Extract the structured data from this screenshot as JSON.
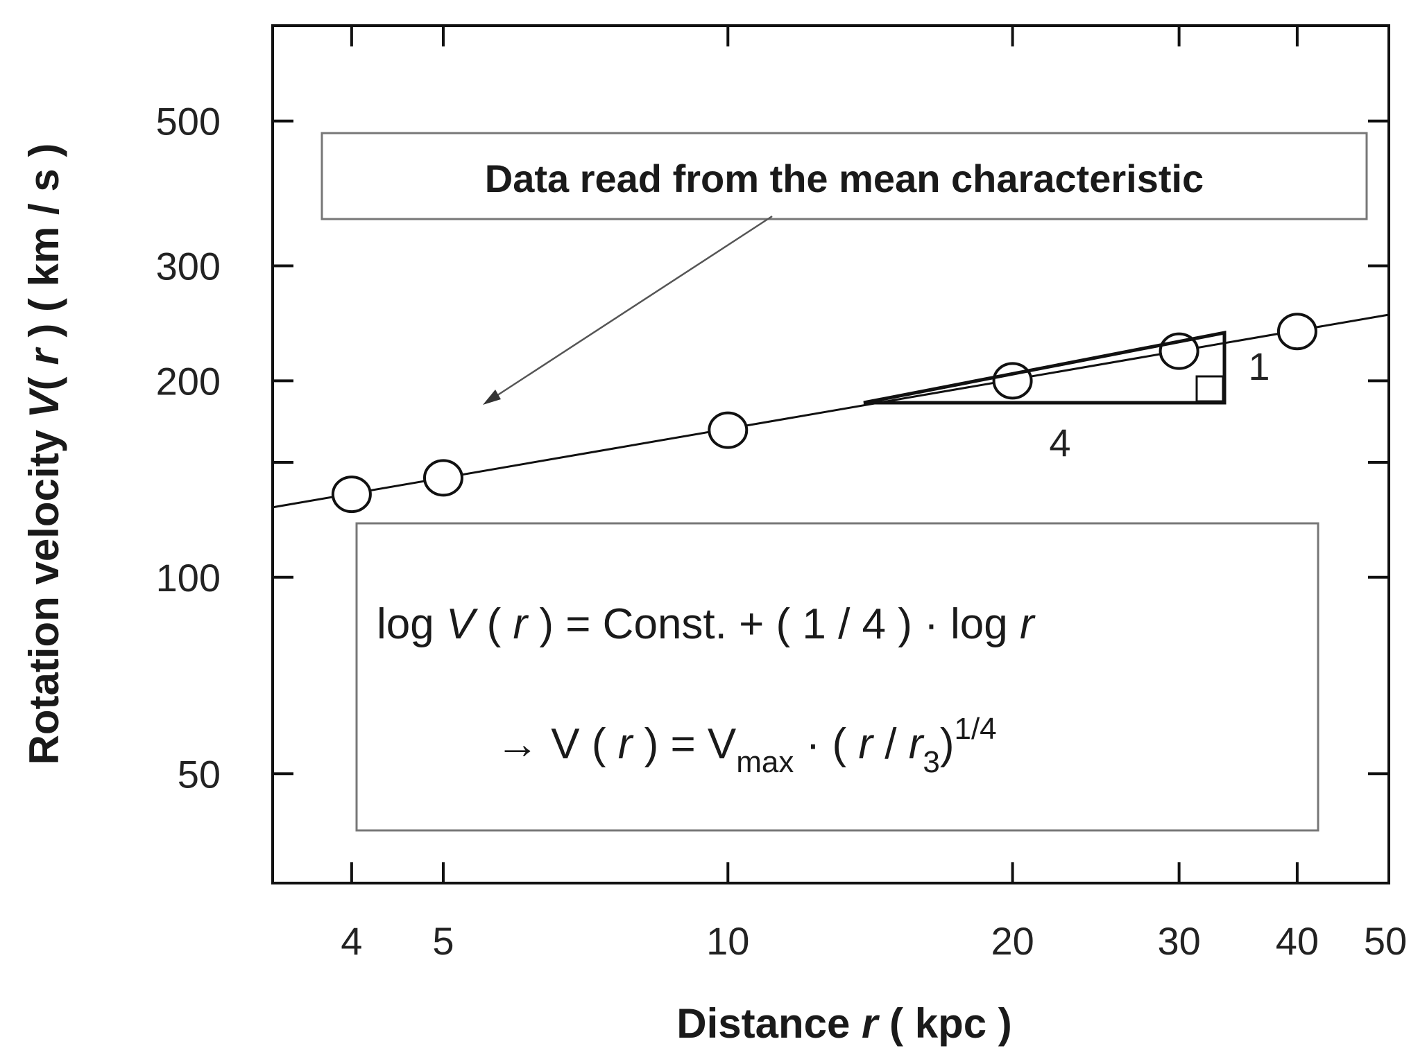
{
  "chart_data": {
    "type": "scatter",
    "x_scale": "log",
    "y_scale": "log",
    "xlabel_parts": [
      "Distance",
      "r",
      "( kpc )"
    ],
    "ylabel_parts": [
      "Rotation velocity",
      "V",
      "(",
      "r",
      ")",
      "( km / s )"
    ],
    "xlim": [
      3.3,
      50
    ],
    "ylim": [
      34,
      700
    ],
    "x_ticks": [
      4,
      5,
      10,
      20,
      30,
      40,
      50
    ],
    "x_tick_labels": [
      "4",
      "5",
      "10",
      "20",
      "30",
      "40",
      "50"
    ],
    "y_ticks": [
      50,
      100,
      150,
      200,
      300,
      500
    ],
    "y_tick_labels": [
      "50",
      "100",
      "",
      "200",
      "300",
      "500"
    ],
    "series": [
      {
        "marker": "open-circle",
        "points": [
          {
            "x": 4,
            "y": 134
          },
          {
            "x": 5,
            "y": 142
          },
          {
            "x": 10,
            "y": 168
          },
          {
            "x": 20,
            "y": 200
          },
          {
            "x": 30,
            "y": 222
          },
          {
            "x": 40,
            "y": 238
          }
        ]
      }
    ],
    "fit_line": {
      "slope": 0.25,
      "x_range": [
        3.3,
        50
      ],
      "y_at_x": {
        "x": 5,
        "y": 142
      }
    },
    "annotations": {
      "callout": "Data read from the mean characteristic",
      "slope_triangle": {
        "rise_label": "1",
        "run_label": "4"
      },
      "formula_line1": {
        "lhs": "log",
        "v": "V",
        "open": "(",
        "r": "r",
        "close": ")",
        "rest": "=  Const.  +  ( 1 / 4 ) · log",
        "r2": "r"
      },
      "formula_line2": {
        "arrow": "→",
        "lhs": "V ( ",
        "r": "r",
        "mid": " )  =  V",
        "sub": "max",
        "dot": " · ( ",
        "r3": "r",
        "slash": " / ",
        "r3b": "r",
        "sub3": "3",
        "close": ")",
        "exp": "1/4"
      }
    }
  }
}
